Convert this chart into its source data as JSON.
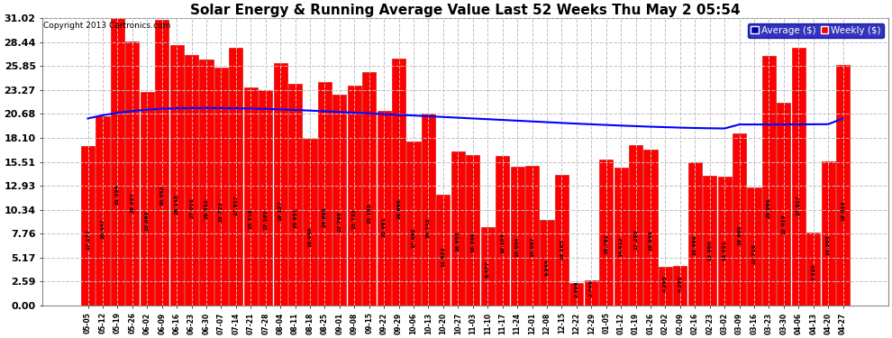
{
  "title": "Solar Energy & Running Average Value Last 52 Weeks Thu May 2 05:54",
  "copyright": "Copyright 2013 Cartronics.com",
  "legend_avg": "Average ($)",
  "legend_weekly": "Weekly ($)",
  "ylim": [
    0.0,
    31.02
  ],
  "yticks": [
    0.0,
    2.59,
    5.17,
    7.76,
    10.34,
    12.93,
    15.51,
    18.1,
    20.68,
    23.27,
    25.85,
    28.44,
    31.02
  ],
  "bar_color": "#ff0000",
  "avg_line_color": "#0000ff",
  "background_color": "#ffffff",
  "grid_color": "#c0c0c0",
  "x_labels": [
    "05-05",
    "05-12",
    "05-19",
    "05-26",
    "06-02",
    "06-09",
    "06-16",
    "06-23",
    "06-30",
    "07-07",
    "07-14",
    "07-21",
    "07-28",
    "08-04",
    "08-11",
    "08-18",
    "08-25",
    "09-01",
    "09-08",
    "09-15",
    "09-22",
    "09-29",
    "10-06",
    "10-13",
    "10-20",
    "10-27",
    "11-03",
    "11-10",
    "11-17",
    "11-24",
    "12-01",
    "12-08",
    "12-15",
    "12-22",
    "12-29",
    "01-05",
    "01-12",
    "01-19",
    "01-26",
    "02-02",
    "02-09",
    "02-16",
    "02-23",
    "03-02",
    "03-09",
    "03-16",
    "03-23",
    "03-30",
    "04-06",
    "04-13",
    "04-20",
    "04-27"
  ],
  "bar_values": [
    17.177,
    20.447,
    31.024,
    28.557,
    23.062,
    30.882,
    28.143,
    27.018,
    26.552,
    25.722,
    27.817,
    23.518,
    23.285,
    26.157,
    23.951,
    18.049,
    24.098,
    22.768,
    23.733,
    25.193,
    20.981,
    26.666,
    17.692,
    20.743,
    11.933,
    16.655,
    16.269,
    8.477,
    16.154,
    15.004,
    15.087,
    9.244,
    14.105,
    2.398,
    2.745,
    15.762,
    14.912,
    17.295,
    16.845,
    4.203,
    4.251,
    15.499,
    13.96,
    13.921,
    18.6,
    12.718,
    26.98,
    21.919,
    27.817,
    7.829,
    15.568,
    26.016
  ],
  "avg_line": [
    20.2,
    20.55,
    20.8,
    21.0,
    21.15,
    21.25,
    21.3,
    21.32,
    21.33,
    21.32,
    21.3,
    21.27,
    21.23,
    21.18,
    21.12,
    21.05,
    20.98,
    20.9,
    20.82,
    20.75,
    20.67,
    20.59,
    20.52,
    20.44,
    20.36,
    20.28,
    20.2,
    20.12,
    20.04,
    19.96,
    19.88,
    19.8,
    19.72,
    19.64,
    19.57,
    19.5,
    19.43,
    19.37,
    19.31,
    19.26,
    19.21,
    19.17,
    19.14,
    19.12,
    19.55,
    19.55,
    19.55,
    19.56,
    19.56,
    19.57,
    19.58,
    20.2
  ],
  "bar_annotations": [
    "17.177",
    "20.447",
    "31.024",
    "28.557",
    "23.062",
    "30.882",
    "28.143",
    "27.018",
    "26.552",
    "25.722",
    "27.817",
    "23.518",
    "23.285",
    "26.157",
    "23.951",
    "18.049",
    "24.098",
    "22.768",
    "23.733",
    "25.193",
    "20.981",
    "26.666",
    "17.692",
    "20.743",
    "11.933",
    "16.655",
    "16.269",
    "8.477",
    "16.154",
    "15.004",
    "15.087",
    "9.244",
    "14.105",
    "2.398",
    "2.745",
    "15.762",
    "14.912",
    "17.295",
    "16.845",
    "4.203",
    "4.251",
    "15.499",
    "13.960",
    "13.921",
    "18.600",
    "12.718",
    "26.980",
    "21.919",
    "27.817",
    "7.829",
    "15.568",
    "26.016"
  ]
}
